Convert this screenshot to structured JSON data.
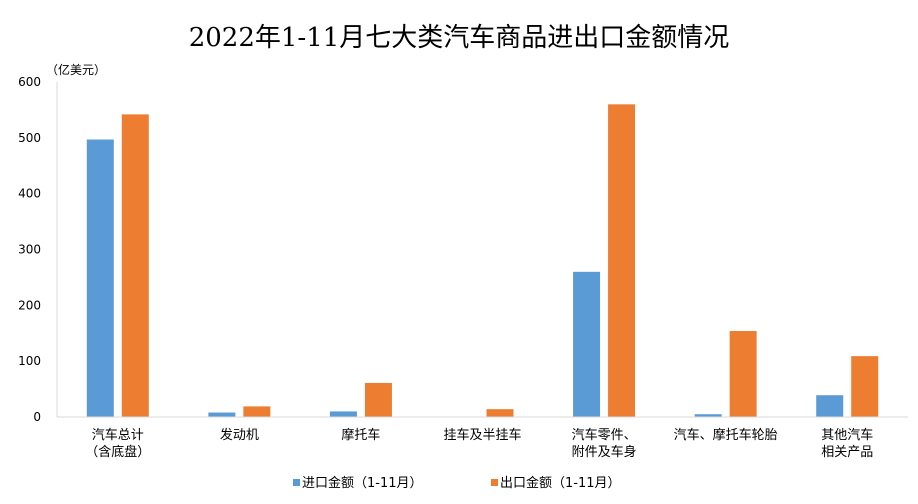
{
  "chart_data": {
    "type": "bar",
    "title": "2022年1-11月七大类汽车商品进出口金额情况",
    "ylabel": "（亿美元）",
    "xlabel": "",
    "ylim": [
      0,
      600
    ],
    "yticks": [
      0,
      100,
      200,
      300,
      400,
      500,
      600
    ],
    "grid": false,
    "legend_position": "bottom",
    "categories": [
      [
        "汽车总计",
        "（含底盘）"
      ],
      [
        "发动机"
      ],
      [
        "摩托车"
      ],
      [
        "挂车及半挂车"
      ],
      [
        "汽车零件、",
        "附件及车身"
      ],
      [
        "汽车、摩托车轮胎"
      ],
      [
        "其他汽车",
        "相关产品"
      ]
    ],
    "series": [
      {
        "name": "进口金额（1-11月）",
        "color": "#5B9BD5",
        "values": [
          497,
          8,
          10,
          0,
          260,
          5,
          39
        ]
      },
      {
        "name": "出口金额（1-11月）",
        "color": "#ED7D31",
        "values": [
          542,
          19,
          61,
          14,
          560,
          154,
          109
        ]
      }
    ]
  }
}
